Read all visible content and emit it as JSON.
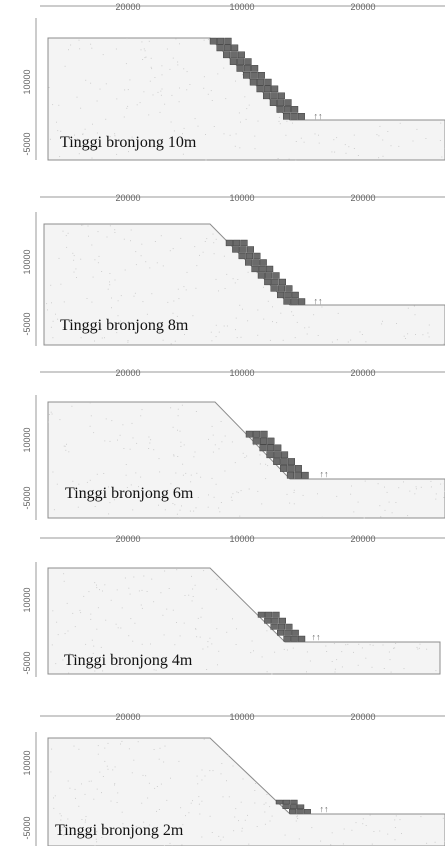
{
  "figure": {
    "panels": [
      {
        "id": "p1",
        "caption": "Tinggi bronjong 10m",
        "top_axis_ticks": [
          "20000",
          "10000",
          "20000"
        ],
        "left_axis_ticks": [
          "10000",
          "-5000"
        ],
        "gabion_height_m": 10,
        "annotation": "↑↑"
      },
      {
        "id": "p2",
        "caption": "Tinggi bronjong 8m",
        "top_axis_ticks": [
          "20000",
          "10000",
          "20000"
        ],
        "left_axis_ticks": [
          "10000",
          "-5000"
        ],
        "gabion_height_m": 8,
        "annotation": "↑↑"
      },
      {
        "id": "p3",
        "caption": "Tinggi bronjong 6m",
        "top_axis_ticks": [
          "20000",
          "10000",
          "20000"
        ],
        "left_axis_ticks": [
          "10000",
          "-5000"
        ],
        "gabion_height_m": 6,
        "annotation": "↑↑"
      },
      {
        "id": "p4",
        "caption": "Tinggi bronjong 4m",
        "top_axis_ticks": [
          "20000",
          "10000",
          "20000"
        ],
        "left_axis_ticks": [
          "10000",
          "-5000"
        ],
        "gabion_height_m": 4,
        "annotation": "↑↑"
      },
      {
        "id": "p5",
        "caption": "Tinggi bronjong 2m",
        "top_axis_ticks": [
          "20000",
          "10000",
          "20000"
        ],
        "left_axis_ticks": [
          "10000",
          "-5000"
        ],
        "gabion_height_m": 2,
        "annotation": "↑↑"
      }
    ],
    "colors": {
      "soil_fill": "#f4f4f4",
      "soil_speckle": "#cfcfcf",
      "outline": "#8c8c8c",
      "gabion_fill": "#6b6b6b",
      "gabion_stroke": "#2f2f2f"
    }
  }
}
